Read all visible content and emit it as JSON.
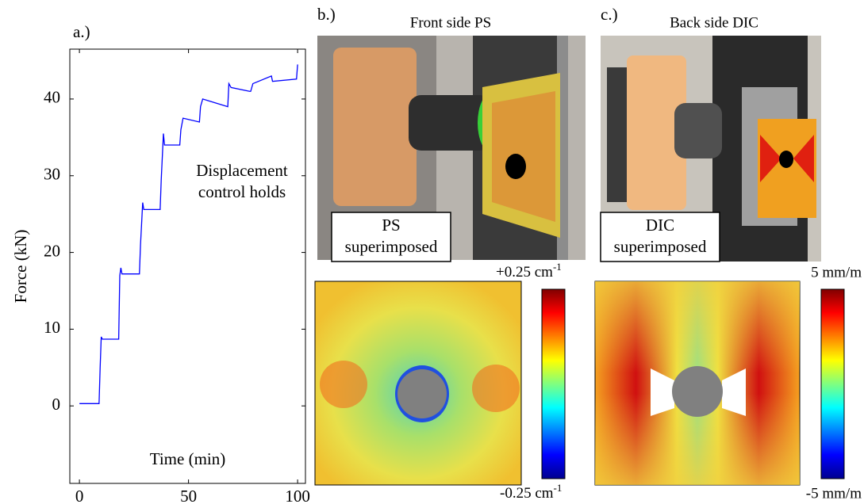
{
  "chart_data": {
    "type": "line",
    "title": "a.)",
    "xlabel": "Time (min)",
    "ylabel": "Force (kN)",
    "annotation": [
      "Displacement",
      "control holds"
    ],
    "x": [
      0,
      9,
      9.5,
      10,
      10.5,
      18,
      18.5,
      19,
      19.5,
      27.5,
      28,
      29,
      29.5,
      37,
      37.5,
      38.5,
      39,
      46,
      46.5,
      47.5,
      55,
      55.5,
      56.5,
      68,
      68.5,
      69.5,
      78,
      78.5,
      79.5,
      88,
      88.5,
      99.5,
      100
    ],
    "series": [
      {
        "name": "Force",
        "color": "#0000ff",
        "values": [
          0.3,
          0.3,
          5,
          9,
          8.7,
          8.7,
          17,
          18,
          17.2,
          17.2,
          21,
          26.5,
          25.6,
          25.6,
          29.5,
          35.5,
          34,
          34,
          36,
          37.5,
          37,
          39,
          40,
          39,
          42,
          41.5,
          41,
          41,
          42,
          43,
          42.3,
          42.6,
          44.5
        ]
      }
    ],
    "xlim": [
      -4.4,
      103.6
    ],
    "ylim": [
      -10.1,
      46.5
    ],
    "xticks": [
      0,
      50,
      100
    ],
    "yticks": [
      0,
      10,
      20,
      30,
      40
    ],
    "grid": false
  },
  "panel_b": {
    "label": "b.)",
    "title": "Front side PS",
    "caption": [
      "PS",
      "superimposed"
    ],
    "colorbar_top": {
      "text": "+0.25 cm",
      "sup": "-1"
    },
    "colorbar_bottom": {
      "text": "-0.25 cm",
      "sup": "-1"
    }
  },
  "panel_c": {
    "label": "c.)",
    "title": "Back side DIC",
    "caption": [
      "DIC",
      "superimposed"
    ],
    "colorbar_top": "5 mm/m",
    "colorbar_bottom": "-5 mm/m"
  }
}
